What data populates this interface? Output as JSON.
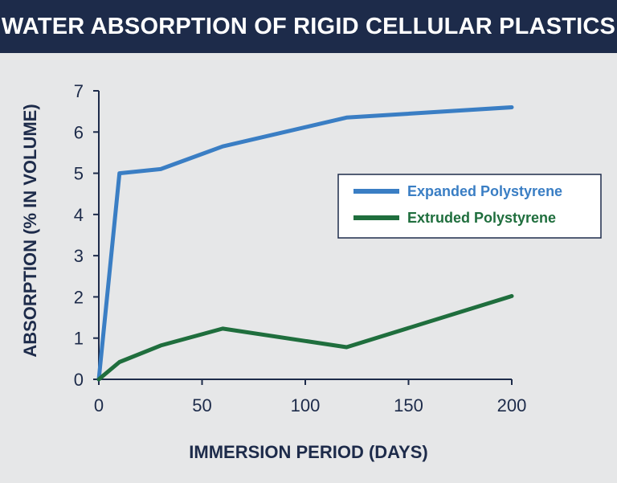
{
  "title": "WATER ABSORPTION OF RIGID CELLULAR PLASTICS",
  "colors": {
    "header_bg": "#1d2b4a",
    "text": "#1d2b4a",
    "background": "#e6e7e8",
    "expanded": "#3a7ec4",
    "extruded": "#1f6e3d"
  },
  "chart_data": {
    "type": "line",
    "title": "WATER ABSORPTION OF RIGID CELLULAR PLASTICS",
    "xlabel": "IMMERSION PERIOD (DAYS)",
    "ylabel": "ABSORPTION (% IN VOLUME)",
    "xlim": [
      0,
      200
    ],
    "ylim": [
      0,
      7
    ],
    "xticks": [
      0,
      50,
      100,
      150,
      200
    ],
    "yticks": [
      0,
      1,
      2,
      3,
      4,
      5,
      6,
      7
    ],
    "grid": false,
    "legend_position": "right",
    "series": [
      {
        "name": "Expanded Polystyrene",
        "color": "#3a7ec4",
        "x": [
          0,
          10,
          30,
          60,
          120,
          200
        ],
        "y": [
          0,
          5.0,
          5.1,
          5.65,
          6.35,
          6.6
        ]
      },
      {
        "name": "Extruded Polystyrene",
        "color": "#1f6e3d",
        "x": [
          0,
          10,
          30,
          60,
          120,
          200
        ],
        "y": [
          0,
          0.42,
          0.82,
          1.23,
          0.78,
          2.02
        ]
      }
    ]
  }
}
